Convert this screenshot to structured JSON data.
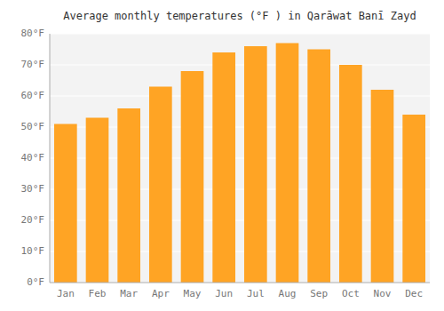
{
  "chart_data": {
    "type": "bar",
    "title": "Average monthly temperatures (°F ) in Qarāwat Banī Zayd",
    "categories": [
      "Jan",
      "Feb",
      "Mar",
      "Apr",
      "May",
      "Jun",
      "Jul",
      "Aug",
      "Sep",
      "Oct",
      "Nov",
      "Dec"
    ],
    "values": [
      51,
      53,
      56,
      63,
      68,
      74,
      76,
      77,
      75,
      70,
      62,
      54
    ],
    "color": "#FFA424",
    "ylim": [
      0,
      80
    ],
    "yticks": [
      {
        "value": 0,
        "label": "0°F"
      },
      {
        "value": 10,
        "label": "10°F"
      },
      {
        "value": 20,
        "label": "20°F"
      },
      {
        "value": 30,
        "label": "30°F"
      },
      {
        "value": 40,
        "label": "40°F"
      },
      {
        "value": 50,
        "label": "50°F"
      },
      {
        "value": 60,
        "label": "60°F"
      },
      {
        "value": 70,
        "label": "70°F"
      },
      {
        "value": 80,
        "label": "80°F"
      }
    ],
    "grid": true
  }
}
